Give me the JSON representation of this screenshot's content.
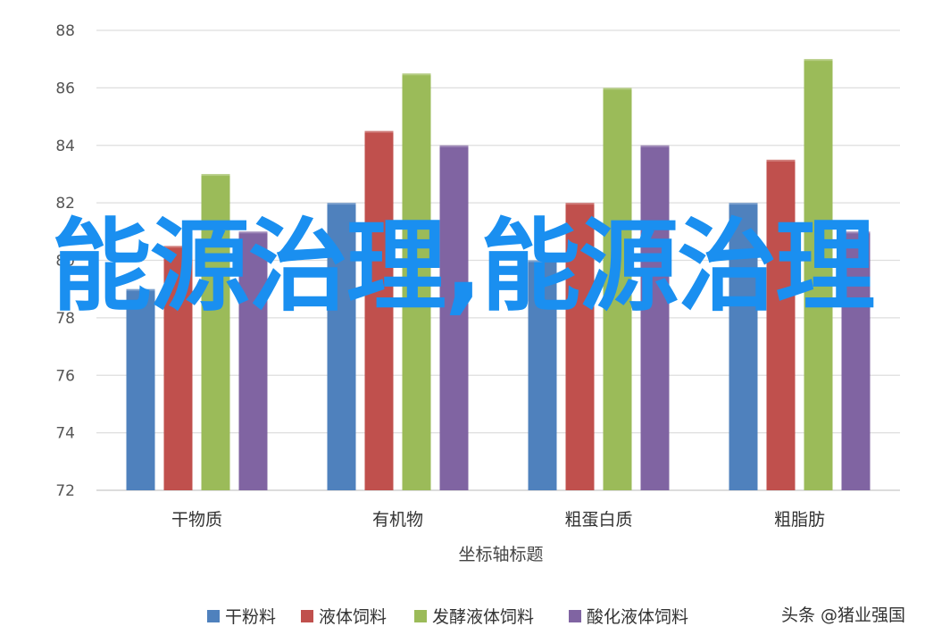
{
  "chart_data": {
    "type": "bar",
    "categories": [
      "干物质",
      "有机物",
      "粗蛋白质",
      "粗脂肪"
    ],
    "series": [
      {
        "name": "干粉料",
        "color": "#4f81bd",
        "values": [
          79,
          82,
          80,
          82
        ]
      },
      {
        "name": "液体饲料",
        "color": "#c0504d",
        "values": [
          80.5,
          84.5,
          82,
          83.5
        ]
      },
      {
        "name": "发酵液体饲料",
        "color": "#9bbb59",
        "values": [
          83,
          86.5,
          86,
          87
        ]
      },
      {
        "name": "酸化液体饲料",
        "color": "#8064a2",
        "values": [
          81,
          84,
          84,
          81
        ]
      }
    ],
    "ylim": [
      72,
      88
    ],
    "yticks": [
      72,
      74,
      76,
      78,
      80,
      82,
      84,
      86,
      88
    ],
    "xlabel": "坐标轴标题",
    "grid": true,
    "legend_position": "bottom"
  },
  "overlay": {
    "title": "能源治理,能源治理"
  },
  "watermark": {
    "text": "头条 @猪业强国"
  }
}
